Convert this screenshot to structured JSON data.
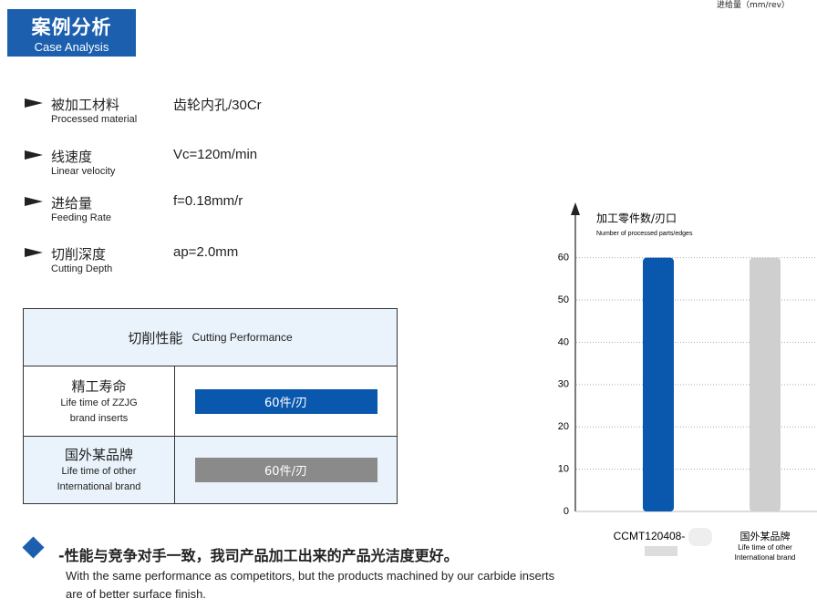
{
  "header": {
    "title": "案例分析",
    "subtitle": "Case Analysis"
  },
  "top_note": "进给量（mm/rev）",
  "params": [
    {
      "label": "被加工材料",
      "label_en": "Processed material",
      "value": "齿轮内孔/30Cr"
    },
    {
      "label": "线速度",
      "label_en": "Linear velocity",
      "value": "Vc=120m/min"
    },
    {
      "label": "进给量",
      "label_en": "Feeding Rate",
      "value": "f=0.18mm/r"
    },
    {
      "label": "切削深度",
      "label_en": "Cutting Depth",
      "value": "ap=2.0mm"
    }
  ],
  "table": {
    "title": "切削性能",
    "title_en": "Cutting Performance",
    "rows": [
      {
        "name": "精工寿命",
        "name_en": "Life time of ZZJG brand inserts",
        "result": "60件/刃"
      },
      {
        "name": "国外某品牌",
        "name_en": "Life time of other International brand",
        "result": "60件/刃"
      }
    ]
  },
  "chart_data": {
    "type": "bar",
    "title": "加工零件数/刃口",
    "subtitle": "Number of processed parts/edges",
    "categories": [
      "CCMT120408-",
      "国外某品牌"
    ],
    "category_note": "Life time of other International brand",
    "values": [
      60,
      60
    ],
    "colors": [
      "#0a58ad",
      "#cfcfcf"
    ],
    "ylim": [
      0,
      72
    ],
    "yticks": [
      0,
      10,
      20,
      30,
      40,
      50,
      60
    ],
    "grid": true
  },
  "conclusion": {
    "heading": "-性能与竞争对手一致，我司产品加工出来的产品光洁度更好。",
    "text": "With the same performance as competitors, but the products machined by our carbide inserts are of better surface finish."
  }
}
